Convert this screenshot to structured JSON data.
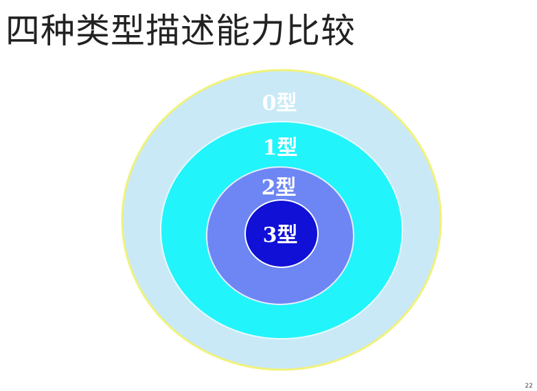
{
  "slide": {
    "title": "四种类型描述能力比较"
  },
  "diagram": {
    "rings": [
      {
        "label": "0型",
        "color": "#c9e9f7",
        "stroke": "#f1f27a"
      },
      {
        "label": "1型",
        "color": "#22f4fb",
        "stroke": "#e8fbff"
      },
      {
        "label": "2型",
        "color": "#6d86f4",
        "stroke": "#e8ecff"
      },
      {
        "label": "3型",
        "color": "#1010d6",
        "stroke": "#ffffff"
      }
    ]
  },
  "footer": {
    "page_mark": "22"
  }
}
